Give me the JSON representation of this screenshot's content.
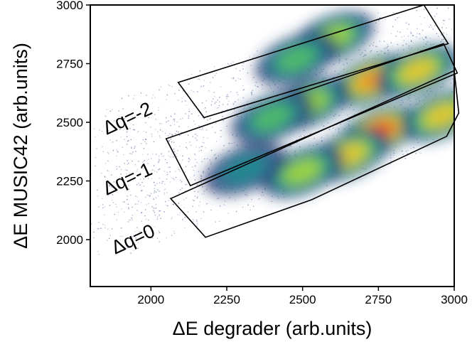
{
  "chart_data": {
    "type": "heatmap",
    "xlabel": "ΔE degrader (arb.units)",
    "ylabel": "ΔE MUSIC42 (arb.units)",
    "xlim": [
      1800,
      3000
    ],
    "ylim": [
      1800,
      3000
    ],
    "x_ticks": [
      2000,
      2250,
      2500,
      2750,
      3000
    ],
    "y_ticks": [
      2000,
      2250,
      2500,
      2750,
      3000
    ],
    "x_tick_labels": [
      "2000",
      "2250",
      "2500",
      "2750",
      "3000"
    ],
    "y_tick_labels": [
      "2000",
      "2250",
      "2500",
      "2750",
      "3000"
    ],
    "colormap": [
      "#26336a",
      "#2c6a9a",
      "#21918c",
      "#5ec962",
      "#b5d935",
      "#f2c12e",
      "#ef8a1f",
      "#e8472a"
    ],
    "gates": [
      {
        "label": "Δq=-2",
        "polygon": [
          [
            2090,
            2670
          ],
          [
            2900,
            3000
          ],
          [
            2980,
            2835
          ],
          [
            2175,
            2520
          ]
        ]
      },
      {
        "label": "Δq=-1",
        "polygon": [
          [
            2050,
            2430
          ],
          [
            2965,
            2835
          ],
          [
            3010,
            2710
          ],
          [
            2130,
            2230
          ]
        ]
      },
      {
        "label": "Δq=0",
        "polygon": [
          [
            2065,
            2175
          ],
          [
            3000,
            2720
          ],
          [
            3015,
            2540
          ],
          [
            2975,
            2440
          ],
          [
            2530,
            2170
          ],
          [
            2180,
            2010
          ]
        ]
      }
    ],
    "clusters": [
      {
        "x": 2600,
        "y": 2860,
        "level": 0.62
      },
      {
        "x": 2480,
        "y": 2770,
        "level": 0.45
      },
      {
        "x": 2730,
        "y": 2680,
        "level": 0.92
      },
      {
        "x": 2880,
        "y": 2720,
        "level": 0.72
      },
      {
        "x": 2520,
        "y": 2580,
        "level": 0.58
      },
      {
        "x": 2400,
        "y": 2520,
        "level": 0.45
      },
      {
        "x": 2750,
        "y": 2460,
        "level": 0.98
      },
      {
        "x": 2960,
        "y": 2530,
        "level": 0.7
      },
      {
        "x": 2650,
        "y": 2360,
        "level": 0.78
      },
      {
        "x": 2500,
        "y": 2290,
        "level": 0.6
      },
      {
        "x": 2310,
        "y": 2300,
        "level": 0.4
      }
    ]
  }
}
